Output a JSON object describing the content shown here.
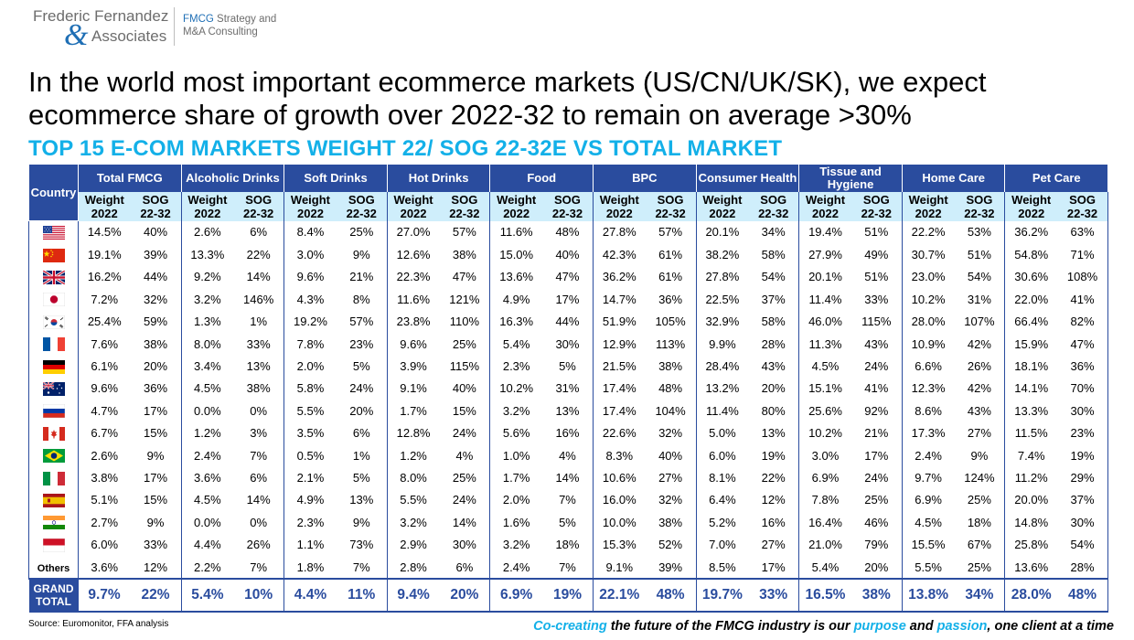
{
  "logo": {
    "name_line1": "Frederic Fernandez",
    "ampersand": "&",
    "name_line2": "Associates",
    "tag_line1": "FMCG",
    "tag_line1_rest": " Strategy and",
    "tag_line2": "M&A Consulting"
  },
  "headline": "In the world most important ecommerce markets (US/CN/UK/SK), we expect ecommerce share of growth over 2022-32 to remain on average >30%",
  "subtitle": "TOP 15 E-COM MARKETS WEIGHT 22/ SOG 22-32E VS TOTAL MARKET",
  "table": {
    "country_header": "Country",
    "categories": [
      "Total FMCG",
      "Alcoholic Drinks",
      "Soft Drinks",
      "Hot Drinks",
      "Food",
      "BPC",
      "Consumer Health",
      "Tissue and Hygiene",
      "Home Care",
      "Pet Care"
    ],
    "sub_weight_l1": "Weight",
    "sub_weight_l2": "2022",
    "sub_sog_l1": "SOG",
    "sub_sog_l2": "22-32",
    "rows": [
      {
        "flag": "us-flag",
        "label": "",
        "values": [
          "14.5%",
          "40%",
          "2.6%",
          "6%",
          "8.4%",
          "25%",
          "27.0%",
          "57%",
          "11.6%",
          "48%",
          "27.8%",
          "57%",
          "20.1%",
          "34%",
          "19.4%",
          "51%",
          "22.2%",
          "53%",
          "36.2%",
          "63%"
        ]
      },
      {
        "flag": "china-flag",
        "label": "",
        "values": [
          "19.1%",
          "39%",
          "13.3%",
          "22%",
          "3.0%",
          "9%",
          "12.6%",
          "38%",
          "15.0%",
          "40%",
          "42.3%",
          "61%",
          "38.2%",
          "58%",
          "27.9%",
          "49%",
          "30.7%",
          "51%",
          "54.8%",
          "71%"
        ]
      },
      {
        "flag": "uk-flag",
        "label": "",
        "values": [
          "16.2%",
          "44%",
          "9.2%",
          "14%",
          "9.6%",
          "21%",
          "22.3%",
          "47%",
          "13.6%",
          "47%",
          "36.2%",
          "61%",
          "27.8%",
          "54%",
          "20.1%",
          "51%",
          "23.0%",
          "54%",
          "30.6%",
          "108%"
        ]
      },
      {
        "flag": "japan-flag",
        "label": "",
        "values": [
          "7.2%",
          "32%",
          "3.2%",
          "146%",
          "4.3%",
          "8%",
          "11.6%",
          "121%",
          "4.9%",
          "17%",
          "14.7%",
          "36%",
          "22.5%",
          "37%",
          "11.4%",
          "33%",
          "10.2%",
          "31%",
          "22.0%",
          "41%"
        ]
      },
      {
        "flag": "south-korea-flag",
        "label": "",
        "values": [
          "25.4%",
          "59%",
          "1.3%",
          "1%",
          "19.2%",
          "57%",
          "23.8%",
          "110%",
          "16.3%",
          "44%",
          "51.9%",
          "105%",
          "32.9%",
          "58%",
          "46.0%",
          "115%",
          "28.0%",
          "107%",
          "66.4%",
          "82%"
        ]
      },
      {
        "flag": "france-flag",
        "label": "",
        "values": [
          "7.6%",
          "38%",
          "8.0%",
          "33%",
          "7.8%",
          "23%",
          "9.6%",
          "25%",
          "5.4%",
          "30%",
          "12.9%",
          "113%",
          "9.9%",
          "28%",
          "11.3%",
          "43%",
          "10.9%",
          "42%",
          "15.9%",
          "47%"
        ]
      },
      {
        "flag": "germany-flag",
        "label": "",
        "values": [
          "6.1%",
          "20%",
          "3.4%",
          "13%",
          "2.0%",
          "5%",
          "3.9%",
          "115%",
          "2.3%",
          "5%",
          "21.5%",
          "38%",
          "28.4%",
          "43%",
          "4.5%",
          "24%",
          "6.6%",
          "26%",
          "18.1%",
          "36%"
        ]
      },
      {
        "flag": "australia-flag",
        "label": "",
        "values": [
          "9.6%",
          "36%",
          "4.5%",
          "38%",
          "5.8%",
          "24%",
          "9.1%",
          "40%",
          "10.2%",
          "31%",
          "17.4%",
          "48%",
          "13.2%",
          "20%",
          "15.1%",
          "41%",
          "12.3%",
          "42%",
          "14.1%",
          "70%"
        ]
      },
      {
        "flag": "russia-flag",
        "label": "",
        "values": [
          "4.7%",
          "17%",
          "0.0%",
          "0%",
          "5.5%",
          "20%",
          "1.7%",
          "15%",
          "3.2%",
          "13%",
          "17.4%",
          "104%",
          "11.4%",
          "80%",
          "25.6%",
          "92%",
          "8.6%",
          "43%",
          "13.3%",
          "30%"
        ]
      },
      {
        "flag": "canada-flag",
        "label": "",
        "values": [
          "6.7%",
          "15%",
          "1.2%",
          "3%",
          "3.5%",
          "6%",
          "12.8%",
          "24%",
          "5.6%",
          "16%",
          "22.6%",
          "32%",
          "5.0%",
          "13%",
          "10.2%",
          "21%",
          "17.3%",
          "27%",
          "11.5%",
          "23%"
        ]
      },
      {
        "flag": "brazil-flag",
        "label": "",
        "values": [
          "2.6%",
          "9%",
          "2.4%",
          "7%",
          "0.5%",
          "1%",
          "1.2%",
          "4%",
          "1.0%",
          "4%",
          "8.3%",
          "40%",
          "6.0%",
          "19%",
          "3.0%",
          "17%",
          "2.4%",
          "9%",
          "7.4%",
          "19%"
        ]
      },
      {
        "flag": "italy-flag",
        "label": "",
        "values": [
          "3.8%",
          "17%",
          "3.6%",
          "6%",
          "2.1%",
          "5%",
          "8.0%",
          "25%",
          "1.7%",
          "14%",
          "10.6%",
          "27%",
          "8.1%",
          "22%",
          "6.9%",
          "24%",
          "9.7%",
          "124%",
          "11.2%",
          "29%"
        ]
      },
      {
        "flag": "spain-flag",
        "label": "",
        "values": [
          "5.1%",
          "15%",
          "4.5%",
          "14%",
          "4.9%",
          "13%",
          "5.5%",
          "24%",
          "2.0%",
          "7%",
          "16.0%",
          "32%",
          "6.4%",
          "12%",
          "7.8%",
          "25%",
          "6.9%",
          "25%",
          "20.0%",
          "37%"
        ]
      },
      {
        "flag": "india-flag",
        "label": "",
        "values": [
          "2.7%",
          "9%",
          "0.0%",
          "0%",
          "2.3%",
          "9%",
          "3.2%",
          "14%",
          "1.6%",
          "5%",
          "10.0%",
          "38%",
          "5.2%",
          "16%",
          "16.4%",
          "46%",
          "4.5%",
          "18%",
          "14.8%",
          "30%"
        ]
      },
      {
        "flag": "indonesia-flag",
        "label": "",
        "values": [
          "6.0%",
          "33%",
          "4.4%",
          "26%",
          "1.1%",
          "73%",
          "2.9%",
          "30%",
          "3.2%",
          "18%",
          "15.3%",
          "52%",
          "7.0%",
          "27%",
          "21.0%",
          "79%",
          "15.5%",
          "67%",
          "25.8%",
          "54%"
        ]
      },
      {
        "flag": "",
        "label": "Others",
        "values": [
          "3.6%",
          "12%",
          "2.2%",
          "7%",
          "1.8%",
          "7%",
          "2.8%",
          "6%",
          "2.4%",
          "7%",
          "9.1%",
          "39%",
          "8.5%",
          "17%",
          "5.4%",
          "20%",
          "5.5%",
          "25%",
          "13.6%",
          "28%"
        ]
      }
    ],
    "grand_total": {
      "label_l1": "GRAND",
      "label_l2": "TOTAL",
      "values": [
        "9.7%",
        "22%",
        "5.4%",
        "10%",
        "4.4%",
        "11%",
        "9.4%",
        "20%",
        "6.9%",
        "19%",
        "22.1%",
        "48%",
        "19.7%",
        "33%",
        "16.5%",
        "38%",
        "13.8%",
        "34%",
        "28.0%",
        "48%"
      ]
    }
  },
  "footer": {
    "source": "Source: Euromonitor, FFA analysis",
    "tagline_parts": [
      "Co-creating",
      " the future of the FMCG industry is our ",
      "purpose",
      " and ",
      "passion",
      ", one client at a time"
    ]
  },
  "colors": {
    "header_navy": "#2a4c9e",
    "subheader_light_blue": "#cfeefb",
    "subtitle_cyan": "#13b0e8",
    "logo_blue": "#1f6fb5"
  }
}
